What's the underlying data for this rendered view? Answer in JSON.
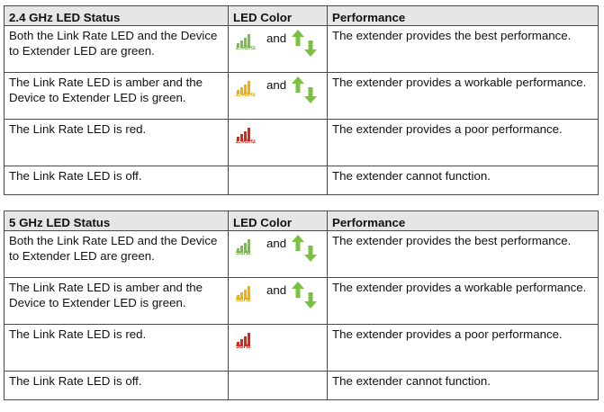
{
  "headers": {
    "t1_status": "2.4 GHz LED Status",
    "t2_status": "5 GHz LED Status",
    "led_color": "LED Color",
    "performance": "Performance"
  },
  "connector": "and",
  "bands": {
    "t1": "2.4GHz",
    "t2": "5GHz"
  },
  "rows": [
    {
      "status": "Both the Link Rate LED and the Device to Extender LED are green.",
      "performance": "The extender provides the best performance.",
      "led": "green"
    },
    {
      "status": "The Link Rate LED is amber and the Device to Extender LED is green.",
      "performance": "The extender provides a workable performance.",
      "led": "amber"
    },
    {
      "status": "The Link Rate LED is red.",
      "performance": "The extender provides a poor performance.",
      "led": "red"
    },
    {
      "status": "The Link Rate LED is off.",
      "performance": "The extender cannot function.",
      "led": "off"
    }
  ],
  "colors": {
    "green": "#7ac142",
    "amber": "#f1b300",
    "red": "#d9251c",
    "header_bg": "#e6e6e6"
  }
}
